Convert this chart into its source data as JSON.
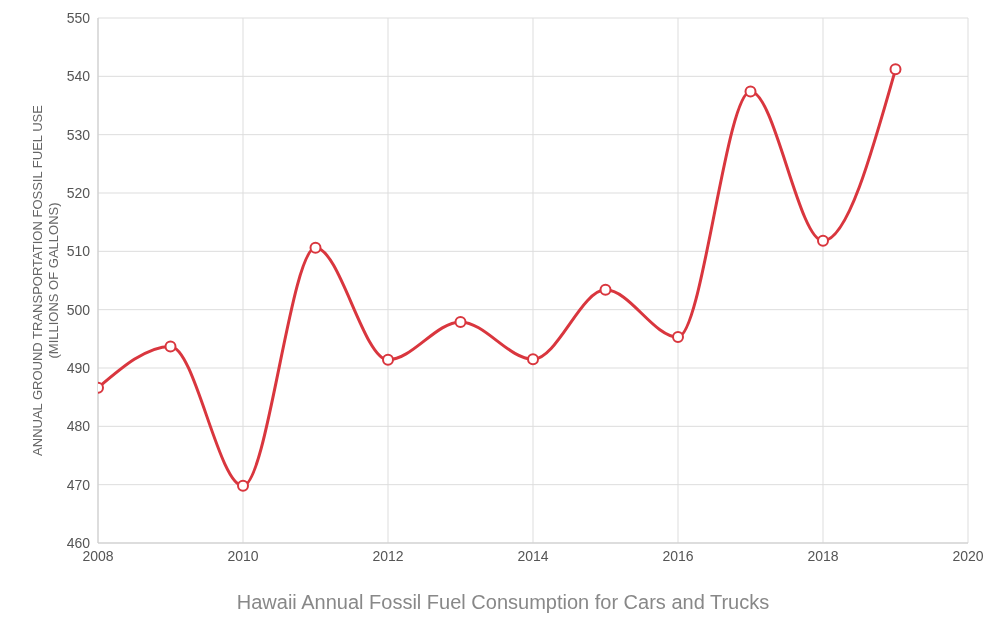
{
  "chart_data": {
    "type": "line",
    "title": "Hawaii Annual Fossil Fuel Consumption for Cars and Trucks",
    "ylabel": "ANNUAL GROUND TRANSPORTATION FOSSIL FUEL USE\n(MILLIONS OF GALLONS)",
    "x": [
      2008,
      2009,
      2010,
      2011,
      2012,
      2013,
      2014,
      2015,
      2016,
      2017,
      2018,
      2019
    ],
    "series": [
      {
        "color": "#d9363e",
        "values": [
          486.6,
          493.7,
          469.8,
          510.6,
          491.4,
          497.9,
          491.5,
          503.4,
          495.3,
          537.4,
          511.8,
          541.2
        ]
      }
    ],
    "xlim": [
      2008,
      2020
    ],
    "xticks": [
      2008,
      2010,
      2012,
      2014,
      2016,
      2018,
      2020
    ],
    "ylim": [
      460,
      550
    ],
    "yticks": [
      460,
      470,
      480,
      490,
      500,
      510,
      520,
      530,
      540,
      550
    ],
    "grid": true,
    "marker": "circle",
    "line_style": "solid"
  }
}
